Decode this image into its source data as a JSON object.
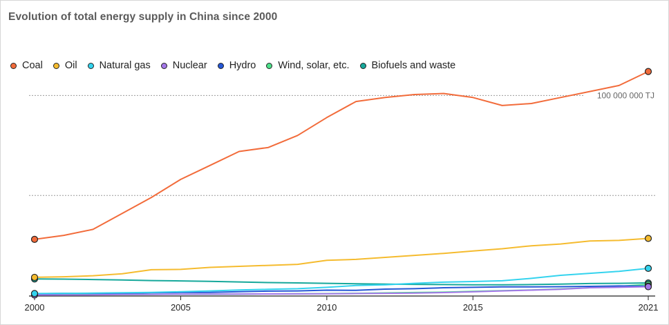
{
  "chart_data": {
    "type": "line",
    "title": "Evolution of total energy supply in China since 2000",
    "xlabel": "",
    "ylabel": "",
    "unit": "TJ",
    "x": [
      2000,
      2001,
      2002,
      2003,
      2004,
      2005,
      2006,
      2007,
      2008,
      2009,
      2010,
      2011,
      2012,
      2013,
      2014,
      2015,
      2016,
      2017,
      2018,
      2019,
      2020,
      2021
    ],
    "xticks": [
      2000,
      2005,
      2010,
      2015,
      2021
    ],
    "ylim": [
      0,
      125000000
    ],
    "gridlines": [
      50000000,
      100000000
    ],
    "grid_label": "100 000 000 TJ",
    "grid": true,
    "legend_position": "top-left",
    "series": [
      {
        "name": "Coal",
        "color": "#f26b3a",
        "values": [
          28000000,
          30000000,
          33000000,
          41000000,
          49000000,
          58000000,
          65000000,
          72000000,
          74000000,
          80000000,
          89000000,
          97000000,
          99000000,
          100500000,
          101000000,
          99000000,
          95000000,
          96000000,
          99000000,
          102000000,
          105000000,
          112000000
        ]
      },
      {
        "name": "Oil",
        "color": "#f5bb2e",
        "values": [
          9000000,
          9300000,
          9800000,
          10800000,
          12800000,
          13000000,
          14000000,
          14500000,
          15000000,
          15500000,
          17500000,
          18000000,
          19000000,
          20000000,
          21000000,
          22200000,
          23300000,
          24800000,
          25700000,
          27200000,
          27500000,
          28500000
        ]
      },
      {
        "name": "Natural gas",
        "color": "#33d3ee",
        "values": [
          900000,
          1000000,
          1100000,
          1300000,
          1500000,
          1800000,
          2200000,
          2700000,
          3000000,
          3300000,
          4000000,
          4900000,
          5300000,
          6000000,
          6600000,
          6900000,
          7300000,
          8500000,
          10000000,
          11000000,
          12000000,
          13500000
        ]
      },
      {
        "name": "Nuclear",
        "color": "#a377e8",
        "values": [
          170000,
          200000,
          250000,
          400000,
          500000,
          550000,
          580000,
          650000,
          700000,
          720000,
          770000,
          900000,
          1000000,
          1150000,
          1380000,
          1770000,
          2210000,
          2590000,
          3000000,
          3800000,
          4000000,
          4300000
        ]
      },
      {
        "name": "Hydro",
        "color": "#2557d6",
        "values": [
          800000,
          1000000,
          1000000,
          1000000,
          1300000,
          1400000,
          1500000,
          1800000,
          2100000,
          2200000,
          2600000,
          2500000,
          3100000,
          3300000,
          3800000,
          4000000,
          4200000,
          4200000,
          4300000,
          4500000,
          4700000,
          4600000
        ]
      },
      {
        "name": "Wind, solar, etc.",
        "color": "#4de18a",
        "values": [
          400000,
          420000,
          440000,
          460000,
          500000,
          520000,
          560000,
          620000,
          700000,
          780000,
          880000,
          1000000,
          1200000,
          1400000,
          1600000,
          2000000,
          2300000,
          2700000,
          3200000,
          3800000,
          4500000,
          5500000
        ]
      },
      {
        "name": "Biofuels and waste",
        "color": "#16a89b",
        "values": [
          8200000,
          8100000,
          7900000,
          7700000,
          7400000,
          7200000,
          7000000,
          6700000,
          6400000,
          6200000,
          6000000,
          5800000,
          5600000,
          5500000,
          5400000,
          5300000,
          5300000,
          5400000,
          5600000,
          5900000,
          6000000,
          6200000
        ]
      }
    ]
  }
}
